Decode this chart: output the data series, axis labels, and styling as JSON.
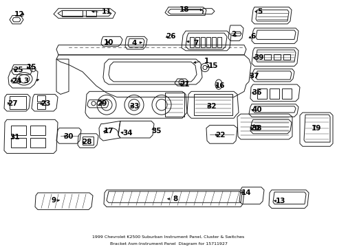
{
  "title": "Bracket Asm-Instrument Panel",
  "subtitle": "1999 Chevrolet K2500 Suburban Instrument Panel, Cluster & Switches",
  "part_number": "15711927",
  "caption": "Diagram for 15711927",
  "background_color": "#ffffff",
  "line_color": "#1a1a1a",
  "text_color": "#000000",
  "fig_width": 4.9,
  "fig_height": 3.6,
  "dpi": 100,
  "font_size": 7.5,
  "lw": 0.7
}
